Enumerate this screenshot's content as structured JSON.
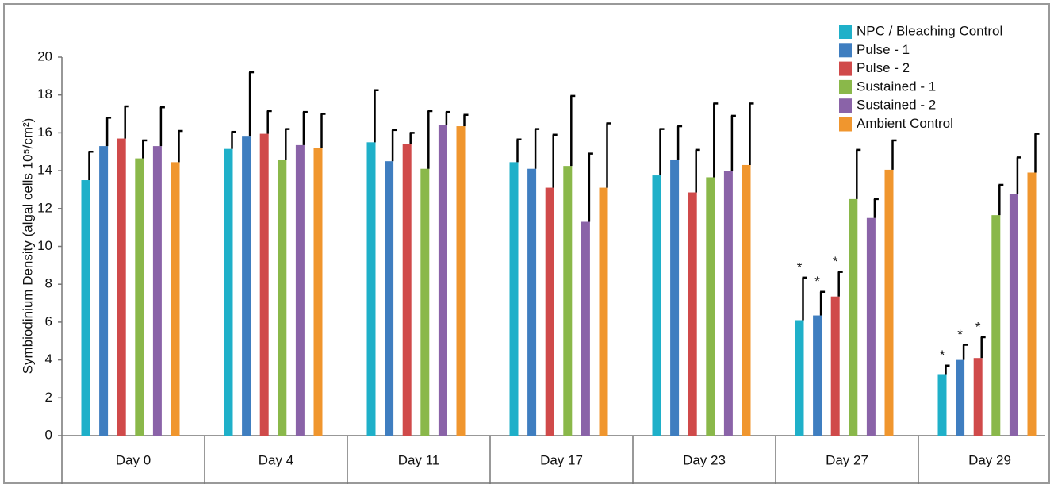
{
  "chart_data": {
    "type": "bar",
    "y_label": "Symbiodinium Density (algal cells 10⁵/cm²)",
    "categories": [
      "Day 0",
      "Day 4",
      "Day 11",
      "Day 17",
      "Day 23",
      "Day 27",
      "Day 29"
    ],
    "ylim": [
      0,
      20
    ],
    "yticks": [
      0,
      2,
      4,
      6,
      8,
      10,
      12,
      14,
      16,
      18,
      20
    ],
    "legend": "top-right",
    "series": [
      {
        "name": "NPC / Bleaching Control",
        "color": "#1fb0c9",
        "values": [
          13.5,
          15.15,
          15.5,
          14.45,
          13.75,
          6.1,
          3.25
        ],
        "errors": [
          1.5,
          0.9,
          2.75,
          1.2,
          2.45,
          2.25,
          0.45
        ],
        "annotations": [
          null,
          null,
          null,
          null,
          null,
          "*",
          "*"
        ]
      },
      {
        "name": "Pulse - 1",
        "color": "#3f7ec0",
        "values": [
          15.3,
          15.8,
          14.5,
          14.1,
          14.55,
          6.35,
          4.0
        ],
        "errors": [
          1.5,
          3.4,
          1.65,
          2.1,
          1.8,
          1.25,
          0.8
        ],
        "annotations": [
          null,
          null,
          null,
          null,
          null,
          "*",
          "*"
        ]
      },
      {
        "name": "Pulse - 2",
        "color": "#d04a4a",
        "values": [
          15.7,
          15.95,
          15.4,
          13.1,
          12.85,
          7.35,
          4.1
        ],
        "errors": [
          1.7,
          1.2,
          0.6,
          2.8,
          2.25,
          1.3,
          1.1
        ],
        "annotations": [
          null,
          null,
          null,
          null,
          null,
          "*",
          "*"
        ]
      },
      {
        "name": "Sustained - 1",
        "color": "#8ab84a",
        "values": [
          14.65,
          14.55,
          14.1,
          14.25,
          13.65,
          12.5,
          11.65
        ],
        "errors": [
          0.95,
          1.65,
          3.05,
          3.7,
          3.9,
          2.6,
          1.6
        ]
      },
      {
        "name": "Sustained - 2",
        "color": "#8a63a8",
        "values": [
          15.3,
          15.35,
          16.4,
          11.3,
          14.0,
          11.5,
          12.75
        ],
        "errors": [
          2.05,
          1.75,
          0.7,
          3.6,
          2.9,
          1.0,
          1.95
        ]
      },
      {
        "name": "Ambient Control",
        "color": "#f0962e",
        "values": [
          14.45,
          15.2,
          16.35,
          13.1,
          14.3,
          14.05,
          13.9
        ],
        "errors": [
          1.65,
          1.8,
          0.6,
          3.4,
          3.25,
          1.55,
          2.05
        ]
      }
    ]
  }
}
